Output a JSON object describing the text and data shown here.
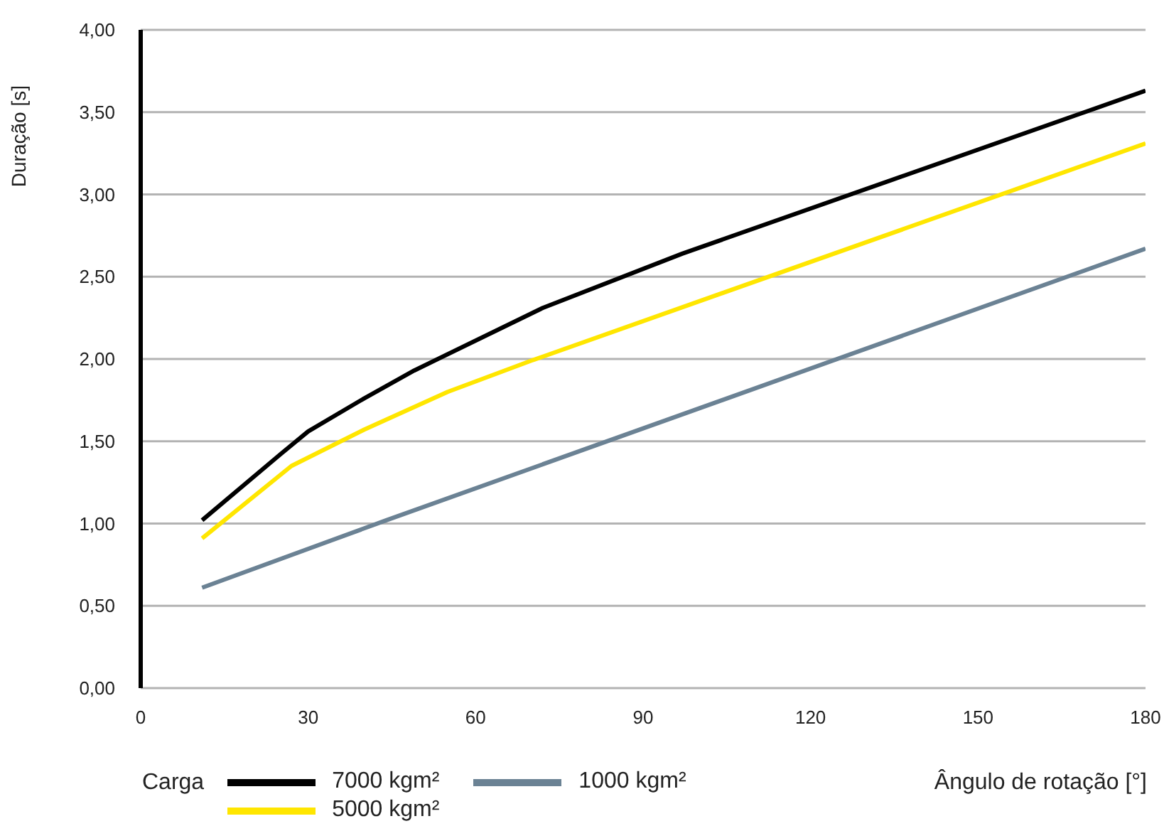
{
  "chart_data": {
    "type": "line",
    "ylabel": "Duração [s]",
    "xlabel": "Ângulo de rotação [°]",
    "legend_title": "Carga",
    "xlim": [
      0,
      180
    ],
    "xticks": [
      0,
      30,
      60,
      90,
      120,
      150,
      180
    ],
    "ylim": [
      0,
      4
    ],
    "yticks": [
      {
        "value": 0,
        "label": "0,00"
      },
      {
        "value": 0.5,
        "label": "0,50"
      },
      {
        "value": 1,
        "label": "1,00"
      },
      {
        "value": 1.5,
        "label": "1,50"
      },
      {
        "value": 2,
        "label": "2,00"
      },
      {
        "value": 2.5,
        "label": "2,50"
      },
      {
        "value": 3,
        "label": "3,00"
      },
      {
        "value": 3.5,
        "label": "3,50"
      },
      {
        "value": 4,
        "label": "4,00"
      }
    ],
    "grid": "y",
    "legend": "bottom",
    "marker": "none",
    "line_style": "solid",
    "series": [
      {
        "name": "7000 kgm²",
        "color": "#000000",
        "x": [
          11,
          25,
          30,
          40,
          49,
          72,
          97,
          180
        ],
        "values": [
          1.02,
          1.42,
          1.56,
          1.76,
          1.93,
          2.31,
          2.64,
          3.63
        ]
      },
      {
        "name": "5000 kgm²",
        "color": "#ffe600",
        "x": [
          11,
          27,
          40,
          55,
          70,
          180
        ],
        "values": [
          0.91,
          1.35,
          1.57,
          1.8,
          1.99,
          3.31
        ]
      },
      {
        "name": "1000 kgm²",
        "color": "#6b8294",
        "x": [
          11,
          44,
          180
        ],
        "values": [
          0.61,
          1.02,
          2.67
        ]
      }
    ]
  }
}
